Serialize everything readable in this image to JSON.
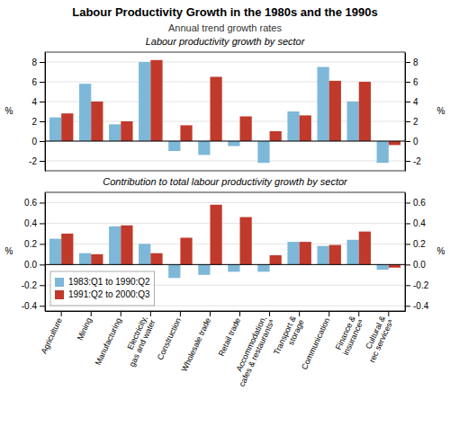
{
  "chart_data": [
    {
      "type": "bar",
      "title": "Labour Productivity Growth in the 1980s and the 1990s",
      "subtitle": "Annual trend growth rates",
      "annotations": [
        "Labour productivity growth by sector"
      ],
      "categories": [
        "Agriculture",
        "Mining",
        "Manufacturing",
        "Electricity,\ngas and water",
        "Construction",
        "Wholesale trade",
        "Retail trade",
        "Accommodation,\ncafes & restaurantsᵃ",
        "Transport &\nstorage",
        "Communication",
        "Finance &\ninsuranceᵃ",
        "Cultural &\nrec servicesᵃ"
      ],
      "series": [
        {
          "color": "#7db8d8",
          "values": [
            2.4,
            5.8,
            1.7,
            8.0,
            -1.0,
            -1.4,
            -0.5,
            -2.2,
            3.0,
            7.5,
            4.0,
            -2.2
          ]
        },
        {
          "color": "#c0392b",
          "values": [
            2.8,
            4.0,
            2.0,
            8.2,
            1.6,
            6.5,
            2.5,
            1.0,
            2.6,
            6.1,
            6.0,
            -0.4
          ]
        }
      ],
      "ylabel": "%",
      "y2label": "%",
      "ylim": [
        -3,
        9
      ],
      "yticks": [
        -2,
        0,
        2,
        4,
        6,
        8
      ],
      "y2lim": [
        -3,
        9
      ],
      "y2ticks": [
        -2,
        0,
        2,
        4,
        6,
        8
      ],
      "grid": true,
      "tick_labels": "y"
    },
    {
      "type": "bar",
      "annotations": [
        "Contribution to total labour productivity growth by sector"
      ],
      "categories": [
        "Agriculture",
        "Mining",
        "Manufacturing",
        "Electricity,\ngas and water",
        "Construction",
        "Wholesale trade",
        "Retail trade",
        "Accommodation,\ncafes & restaurantsᵃ",
        "Transport &\nstorage",
        "Communication",
        "Finance &\ninsuranceᵃ",
        "Cultural &\nrec servicesᵃ"
      ],
      "series": [
        {
          "name": "1983:Q1 to 1990:Q2",
          "color": "#7db8d8",
          "values": [
            0.25,
            0.11,
            0.37,
            0.2,
            -0.13,
            -0.1,
            -0.07,
            -0.07,
            0.22,
            0.18,
            0.24,
            -0.05
          ]
        },
        {
          "name": "1991:Q2 to 2000:Q3",
          "color": "#c0392b",
          "values": [
            0.3,
            0.1,
            0.38,
            0.11,
            0.26,
            0.58,
            0.46,
            0.09,
            0.22,
            0.19,
            0.32,
            -0.03
          ]
        }
      ],
      "ylabel": "%",
      "y2label": "%",
      "ylim": [
        -0.45,
        0.7
      ],
      "yticks": [
        -0.4,
        -0.2,
        {
          "value": 0.0,
          "label": "0.0"
        },
        0.2,
        0.4,
        0.6
      ],
      "y2lim": [
        -0.45,
        0.7
      ],
      "y2ticks": [
        -0.4,
        -0.2,
        {
          "value": 0.0,
          "label": "0.0"
        },
        0.2,
        0.4,
        0.6
      ],
      "grid": true,
      "legend": "lower left"
    }
  ]
}
